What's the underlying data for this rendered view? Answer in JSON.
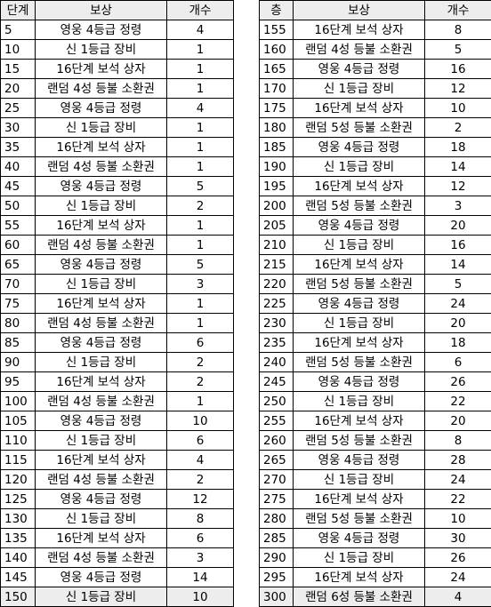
{
  "left": {
    "headers": [
      "단계",
      "보상",
      "개수"
    ],
    "rows": [
      [
        "5",
        "영웅 4등급 정령",
        "4"
      ],
      [
        "10",
        "신 1등급 장비",
        "1"
      ],
      [
        "15",
        "16단계 보석 상자",
        "1"
      ],
      [
        "20",
        "랜덤 4성 등불 소환권",
        "1"
      ],
      [
        "25",
        "영웅 4등급 정령",
        "4"
      ],
      [
        "30",
        "신 1등급 장비",
        "1"
      ],
      [
        "35",
        "16단계 보석 상자",
        "1"
      ],
      [
        "40",
        "랜덤 4성 등불 소환권",
        "1"
      ],
      [
        "45",
        "영웅 4등급 정령",
        "5"
      ],
      [
        "50",
        "신 1등급 장비",
        "2"
      ],
      [
        "55",
        "16단계 보석 상자",
        "1"
      ],
      [
        "60",
        "랜덤 4성 등불 소환권",
        "1"
      ],
      [
        "65",
        "영웅 4등급 정령",
        "5"
      ],
      [
        "70",
        "신 1등급 장비",
        "3"
      ],
      [
        "75",
        "16단계 보석 상자",
        "1"
      ],
      [
        "80",
        "랜덤 4성 등불 소환권",
        "1"
      ],
      [
        "85",
        "영웅 4등급 정령",
        "6"
      ],
      [
        "90",
        "신 1등급 장비",
        "2"
      ],
      [
        "95",
        "16단계 보석 상자",
        "2"
      ],
      [
        "100",
        "랜덤 4성 등불 소환권",
        "1"
      ],
      [
        "105",
        "영웅 4등급 정령",
        "10"
      ],
      [
        "110",
        "신 1등급 장비",
        "6"
      ],
      [
        "115",
        "16단계 보석 상자",
        "4"
      ],
      [
        "120",
        "랜덤 4성 등불 소환권",
        "2"
      ],
      [
        "125",
        "영웅 4등급 정령",
        "12"
      ],
      [
        "130",
        "신 1등급 장비",
        "8"
      ],
      [
        "135",
        "16단계 보석 상자",
        "6"
      ],
      [
        "140",
        "랜덤 4성 등불 소환권",
        "3"
      ],
      [
        "145",
        "영웅 4등급 정령",
        "14"
      ],
      [
        "150",
        "신 1등급 장비",
        "10"
      ]
    ]
  },
  "right": {
    "headers": [
      "층",
      "보상",
      "개수"
    ],
    "rows": [
      [
        "155",
        "16단계 보석 상자",
        "8"
      ],
      [
        "160",
        "랜덤 4성 등불 소환권",
        "5"
      ],
      [
        "165",
        "영웅 4등급 정령",
        "16"
      ],
      [
        "170",
        "신 1등급 장비",
        "12"
      ],
      [
        "175",
        "16단계 보석 상자",
        "10"
      ],
      [
        "180",
        "랜덤 5성 등불 소환권",
        "2"
      ],
      [
        "185",
        "영웅 4등급 정령",
        "18"
      ],
      [
        "190",
        "신 1등급 장비",
        "14"
      ],
      [
        "195",
        "16단계 보석 상자",
        "12"
      ],
      [
        "200",
        "랜덤 5성 등불 소환권",
        "3"
      ],
      [
        "205",
        "영웅 4등급 정령",
        "20"
      ],
      [
        "210",
        "신 1등급 장비",
        "16"
      ],
      [
        "215",
        "16단계 보석 상자",
        "14"
      ],
      [
        "220",
        "랜덤 5성 등불 소환권",
        "5"
      ],
      [
        "225",
        "영웅 4등급 정령",
        "24"
      ],
      [
        "230",
        "신 1등급 장비",
        "20"
      ],
      [
        "235",
        "16단계 보석 상자",
        "18"
      ],
      [
        "240",
        "랜덤 5성 등불 소환권",
        "6"
      ],
      [
        "245",
        "영웅 4등급 정령",
        "26"
      ],
      [
        "250",
        "신 1등급 장비",
        "22"
      ],
      [
        "255",
        "16단계 보석 상자",
        "20"
      ],
      [
        "260",
        "랜덤 5성 등불 소환권",
        "8"
      ],
      [
        "265",
        "영웅 4등급 정령",
        "28"
      ],
      [
        "270",
        "신 1등급 장비",
        "24"
      ],
      [
        "275",
        "16단계 보석 상자",
        "22"
      ],
      [
        "280",
        "랜덤 5성 등불 소환권",
        "10"
      ],
      [
        "285",
        "영웅 4등급 정령",
        "30"
      ],
      [
        "290",
        "신 1등급 장비",
        "26"
      ],
      [
        "295",
        "16단계 보석 상자",
        "24"
      ],
      [
        "300",
        "랜덤 6성 등불 소환권",
        "4"
      ]
    ]
  }
}
